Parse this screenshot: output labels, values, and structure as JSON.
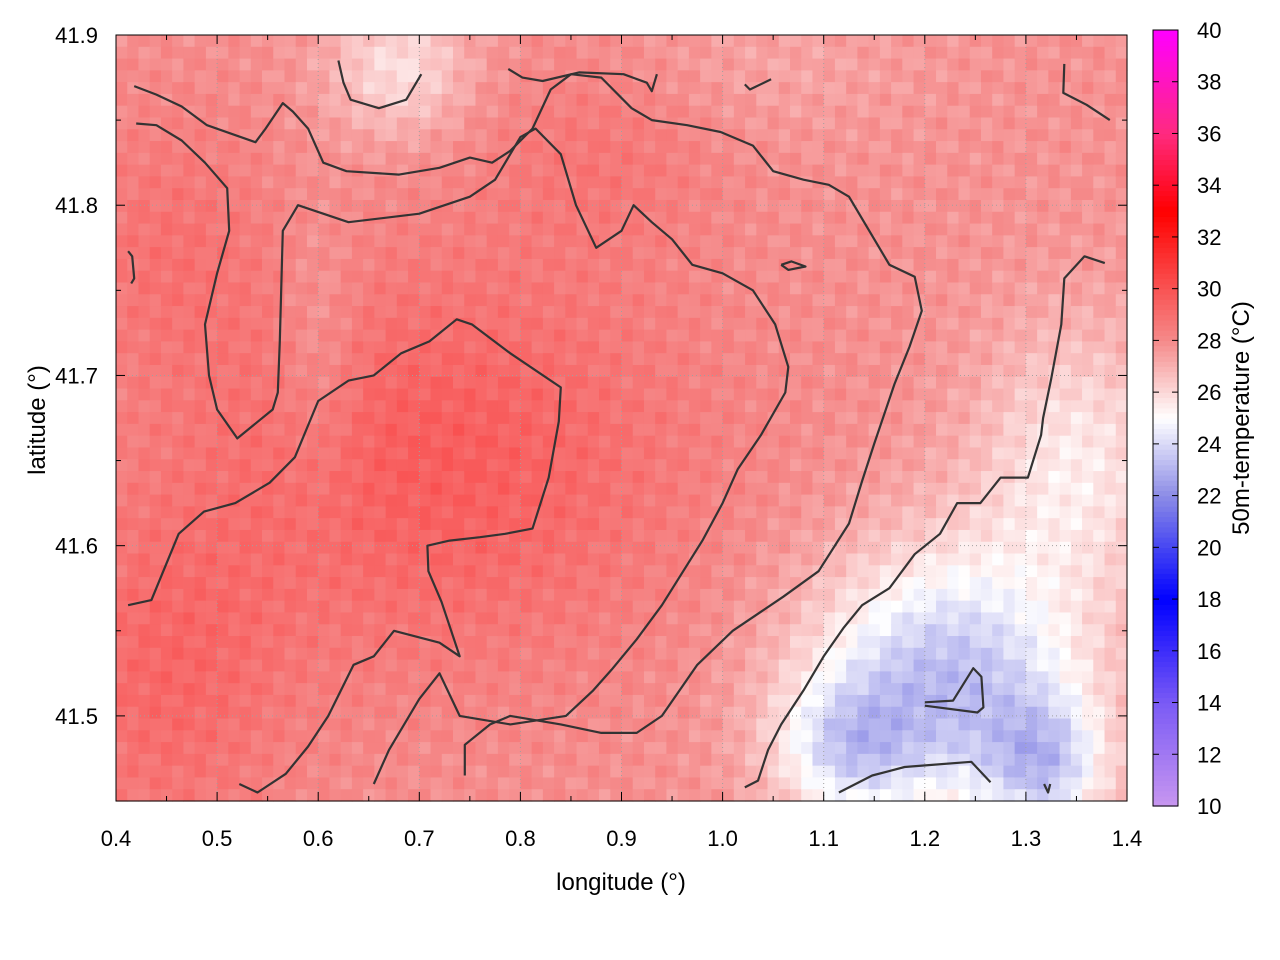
{
  "chart_data": {
    "type": "heatmap",
    "xlabel": "longitude (°)",
    "ylabel": "latitude (°)",
    "colorbar_label": "50m-temperature (°C)",
    "xlim": [
      0.4,
      1.4
    ],
    "ylim": [
      41.45,
      41.9
    ],
    "x_ticks": [
      "0.4",
      "0.5",
      "0.6",
      "0.7",
      "0.8",
      "0.9",
      "1.0",
      "1.1",
      "1.2",
      "1.3",
      "1.4"
    ],
    "y_ticks": [
      "41.5",
      "41.6",
      "41.7",
      "41.8",
      "41.9"
    ],
    "colorbar_range": [
      10,
      40
    ],
    "colorbar_ticks": [
      "10",
      "12",
      "14",
      "16",
      "18",
      "20",
      "22",
      "24",
      "26",
      "28",
      "30",
      "32",
      "34",
      "36",
      "38",
      "40"
    ],
    "colormap": [
      {
        "value": 10,
        "color": "#c896f0"
      },
      {
        "value": 14,
        "color": "#7a5af5"
      },
      {
        "value": 18,
        "color": "#0000ff"
      },
      {
        "value": 22,
        "color": "#8c8ce6"
      },
      {
        "value": 25,
        "color": "#ffffff"
      },
      {
        "value": 28,
        "color": "#f58a8a"
      },
      {
        "value": 33,
        "color": "#ff0000"
      },
      {
        "value": 36,
        "color": "#ff2a7f"
      },
      {
        "value": 40,
        "color": "#ff00ff"
      }
    ],
    "grid": true,
    "grid_style": "dotted",
    "temperature_field": {
      "base": 27.8,
      "note": "warm red core centred near (0.72, 41.65); cooler blue area in south-east near (1.2, 41.5)",
      "anomalies": [
        {
          "lon": 0.72,
          "lat": 41.65,
          "amp": 1.8,
          "sx": 0.25,
          "sy": 0.12
        },
        {
          "lon": 0.45,
          "lat": 41.52,
          "amp": 1.3,
          "sx": 0.12,
          "sy": 0.1
        },
        {
          "lon": 0.45,
          "lat": 41.78,
          "amp": 0.9,
          "sx": 0.1,
          "sy": 0.08
        },
        {
          "lon": 0.88,
          "lat": 41.83,
          "amp": 0.8,
          "sx": 0.12,
          "sy": 0.06
        },
        {
          "lon": 1.22,
          "lat": 41.52,
          "amp": -4.5,
          "sx": 0.14,
          "sy": 0.08
        },
        {
          "lon": 1.32,
          "lat": 41.47,
          "amp": -3.0,
          "sx": 0.06,
          "sy": 0.04
        },
        {
          "lon": 1.12,
          "lat": 41.48,
          "amp": -2.5,
          "sx": 0.07,
          "sy": 0.04
        },
        {
          "lon": 1.35,
          "lat": 41.65,
          "amp": -2.2,
          "sx": 0.1,
          "sy": 0.08
        },
        {
          "lon": 0.68,
          "lat": 41.88,
          "amp": -2.0,
          "sx": 0.07,
          "sy": 0.04
        },
        {
          "lon": 0.6,
          "lat": 41.71,
          "amp": -0.9,
          "sx": 0.04,
          "sy": 0.08
        },
        {
          "lon": 1.05,
          "lat": 41.88,
          "amp": -0.5,
          "sx": 0.15,
          "sy": 0.04
        }
      ]
    },
    "contours": [
      [
        [
          0.412,
          41.565
        ],
        [
          0.435,
          41.568
        ],
        [
          0.462,
          41.607
        ],
        [
          0.487,
          41.62
        ],
        [
          0.518,
          41.625
        ],
        [
          0.552,
          41.637
        ],
        [
          0.577,
          41.652
        ],
        [
          0.6,
          41.685
        ],
        [
          0.63,
          41.697
        ],
        [
          0.655,
          41.7
        ],
        [
          0.682,
          41.713
        ],
        [
          0.71,
          41.72
        ],
        [
          0.737,
          41.733
        ],
        [
          0.752,
          41.73
        ],
        [
          0.79,
          41.713
        ],
        [
          0.84,
          41.693
        ],
        [
          0.838,
          41.673
        ],
        [
          0.828,
          41.64
        ],
        [
          0.812,
          41.61
        ],
        [
          0.785,
          41.607
        ],
        [
          0.76,
          41.605
        ],
        [
          0.73,
          41.603
        ],
        [
          0.708,
          41.6
        ],
        [
          0.709,
          41.585
        ],
        [
          0.722,
          41.567
        ],
        [
          0.74,
          41.535
        ],
        [
          0.72,
          41.543
        ],
        [
          0.675,
          41.55
        ],
        [
          0.655,
          41.535
        ],
        [
          0.635,
          41.53
        ],
        [
          0.61,
          41.5
        ],
        [
          0.59,
          41.482
        ],
        [
          0.568,
          41.466
        ],
        [
          0.54,
          41.455
        ],
        [
          0.522,
          41.46
        ]
      ],
      [
        [
          0.655,
          41.46
        ],
        [
          0.67,
          41.48
        ],
        [
          0.7,
          41.51
        ],
        [
          0.72,
          41.525
        ],
        [
          0.74,
          41.5
        ],
        [
          0.79,
          41.495
        ],
        [
          0.845,
          41.5
        ],
        [
          0.872,
          41.515
        ],
        [
          0.89,
          41.527
        ],
        [
          0.915,
          41.545
        ],
        [
          0.94,
          41.565
        ],
        [
          0.98,
          41.603
        ],
        [
          1.0,
          41.625
        ],
        [
          1.015,
          41.645
        ],
        [
          1.038,
          41.665
        ],
        [
          1.062,
          41.69
        ],
        [
          1.065,
          41.705
        ],
        [
          1.052,
          41.73
        ],
        [
          1.03,
          41.75
        ],
        [
          1.0,
          41.76
        ],
        [
          0.97,
          41.765
        ],
        [
          0.95,
          41.78
        ],
        [
          0.93,
          41.79
        ],
        [
          0.912,
          41.8
        ],
        [
          0.9,
          41.785
        ],
        [
          0.875,
          41.775
        ],
        [
          0.855,
          41.8
        ],
        [
          0.84,
          41.83
        ],
        [
          0.815,
          41.845
        ],
        [
          0.8,
          41.84
        ],
        [
          0.775,
          41.815
        ],
        [
          0.75,
          41.805
        ],
        [
          0.7,
          41.795
        ],
        [
          0.63,
          41.79
        ],
        [
          0.58,
          41.8
        ],
        [
          0.565,
          41.785
        ],
        [
          0.562,
          41.72
        ],
        [
          0.56,
          41.69
        ],
        [
          0.555,
          41.68
        ],
        [
          0.52,
          41.663
        ],
        [
          0.5,
          41.68
        ],
        [
          0.492,
          41.7
        ],
        [
          0.488,
          41.73
        ],
        [
          0.5,
          41.76
        ],
        [
          0.512,
          41.785
        ],
        [
          0.51,
          41.81
        ],
        [
          0.488,
          41.825
        ],
        [
          0.465,
          41.838
        ],
        [
          0.44,
          41.847
        ],
        [
          0.42,
          41.848
        ]
      ],
      [
        [
          0.418,
          41.87
        ],
        [
          0.44,
          41.865
        ],
        [
          0.465,
          41.858
        ],
        [
          0.49,
          41.847
        ],
        [
          0.538,
          41.837
        ],
        [
          0.548,
          41.845
        ],
        [
          0.565,
          41.86
        ],
        [
          0.575,
          41.855
        ],
        [
          0.59,
          41.845
        ],
        [
          0.605,
          41.825
        ],
        [
          0.628,
          41.82
        ],
        [
          0.68,
          41.818
        ],
        [
          0.72,
          41.822
        ],
        [
          0.75,
          41.828
        ],
        [
          0.772,
          41.825
        ],
        [
          0.79,
          41.832
        ],
        [
          0.812,
          41.845
        ],
        [
          0.83,
          41.868
        ],
        [
          0.85,
          41.877
        ],
        [
          0.88,
          41.875
        ],
        [
          0.91,
          41.857
        ],
        [
          0.93,
          41.85
        ],
        [
          0.965,
          41.847
        ],
        [
          0.998,
          41.843
        ],
        [
          1.03,
          41.835
        ],
        [
          1.05,
          41.82
        ],
        [
          1.08,
          41.815
        ],
        [
          1.105,
          41.812
        ],
        [
          1.125,
          41.805
        ],
        [
          1.15,
          41.78
        ],
        [
          1.165,
          41.765
        ],
        [
          1.19,
          41.758
        ],
        [
          1.197,
          41.738
        ],
        [
          1.185,
          41.717
        ],
        [
          1.17,
          41.695
        ],
        [
          1.15,
          41.66
        ],
        [
          1.138,
          41.638
        ],
        [
          1.125,
          41.613
        ],
        [
          1.095,
          41.585
        ],
        [
          1.06,
          41.57
        ],
        [
          1.01,
          41.55
        ],
        [
          0.975,
          41.53
        ],
        [
          0.94,
          41.5
        ],
        [
          0.915,
          41.49
        ],
        [
          0.88,
          41.49
        ],
        [
          0.84,
          41.495
        ],
        [
          0.79,
          41.5
        ],
        [
          0.77,
          41.495
        ],
        [
          0.745,
          41.483
        ],
        [
          0.745,
          41.465
        ]
      ],
      [
        [
          1.022,
          41.458
        ],
        [
          1.035,
          41.462
        ],
        [
          1.045,
          41.48
        ],
        [
          1.058,
          41.495
        ],
        [
          1.08,
          41.515
        ],
        [
          1.1,
          41.535
        ],
        [
          1.12,
          41.552
        ],
        [
          1.138,
          41.565
        ],
        [
          1.165,
          41.575
        ],
        [
          1.19,
          41.595
        ],
        [
          1.215,
          41.607
        ],
        [
          1.232,
          41.625
        ],
        [
          1.255,
          41.625
        ],
        [
          1.275,
          41.64
        ],
        [
          1.302,
          41.64
        ],
        [
          1.315,
          41.665
        ],
        [
          1.317,
          41.675
        ],
        [
          1.325,
          41.698
        ],
        [
          1.335,
          41.73
        ],
        [
          1.338,
          41.757
        ],
        [
          1.358,
          41.77
        ],
        [
          1.378,
          41.766
        ]
      ],
      [
        [
          1.115,
          41.455
        ],
        [
          1.148,
          41.465
        ],
        [
          1.18,
          41.47
        ],
        [
          1.246,
          41.473
        ],
        [
          1.265,
          41.461
        ]
      ],
      [
        [
          1.2,
          41.508
        ],
        [
          1.228,
          41.509
        ],
        [
          1.248,
          41.528
        ],
        [
          1.256,
          41.523
        ],
        [
          1.258,
          41.505
        ],
        [
          1.252,
          41.502
        ],
        [
          1.2,
          41.506
        ]
      ],
      [
        [
          1.058,
          41.765
        ],
        [
          1.068,
          41.767
        ],
        [
          1.082,
          41.764
        ],
        [
          1.065,
          41.762
        ],
        [
          1.058,
          41.765
        ]
      ],
      [
        [
          0.412,
          41.773
        ],
        [
          0.416,
          41.77
        ],
        [
          0.418,
          41.757
        ],
        [
          0.415,
          41.754
        ]
      ],
      [
        [
          0.62,
          41.885
        ],
        [
          0.625,
          41.872
        ],
        [
          0.632,
          41.862
        ],
        [
          0.66,
          41.857
        ],
        [
          0.687,
          41.862
        ],
        [
          0.702,
          41.877
        ]
      ],
      [
        [
          0.788,
          41.88
        ],
        [
          0.802,
          41.875
        ],
        [
          0.822,
          41.873
        ],
        [
          0.858,
          41.878
        ],
        [
          0.902,
          41.877
        ],
        [
          0.925,
          41.872
        ],
        [
          0.93,
          41.867
        ],
        [
          0.935,
          41.877
        ]
      ],
      [
        [
          1.022,
          41.871
        ],
        [
          1.027,
          41.868
        ],
        [
          1.048,
          41.874
        ]
      ],
      [
        [
          1.338,
          41.883
        ],
        [
          1.337,
          41.866
        ],
        [
          1.36,
          41.859
        ],
        [
          1.383,
          41.85
        ]
      ],
      [
        [
          1.318,
          41.46
        ],
        [
          1.322,
          41.455
        ],
        [
          1.324,
          41.46
        ]
      ]
    ]
  }
}
